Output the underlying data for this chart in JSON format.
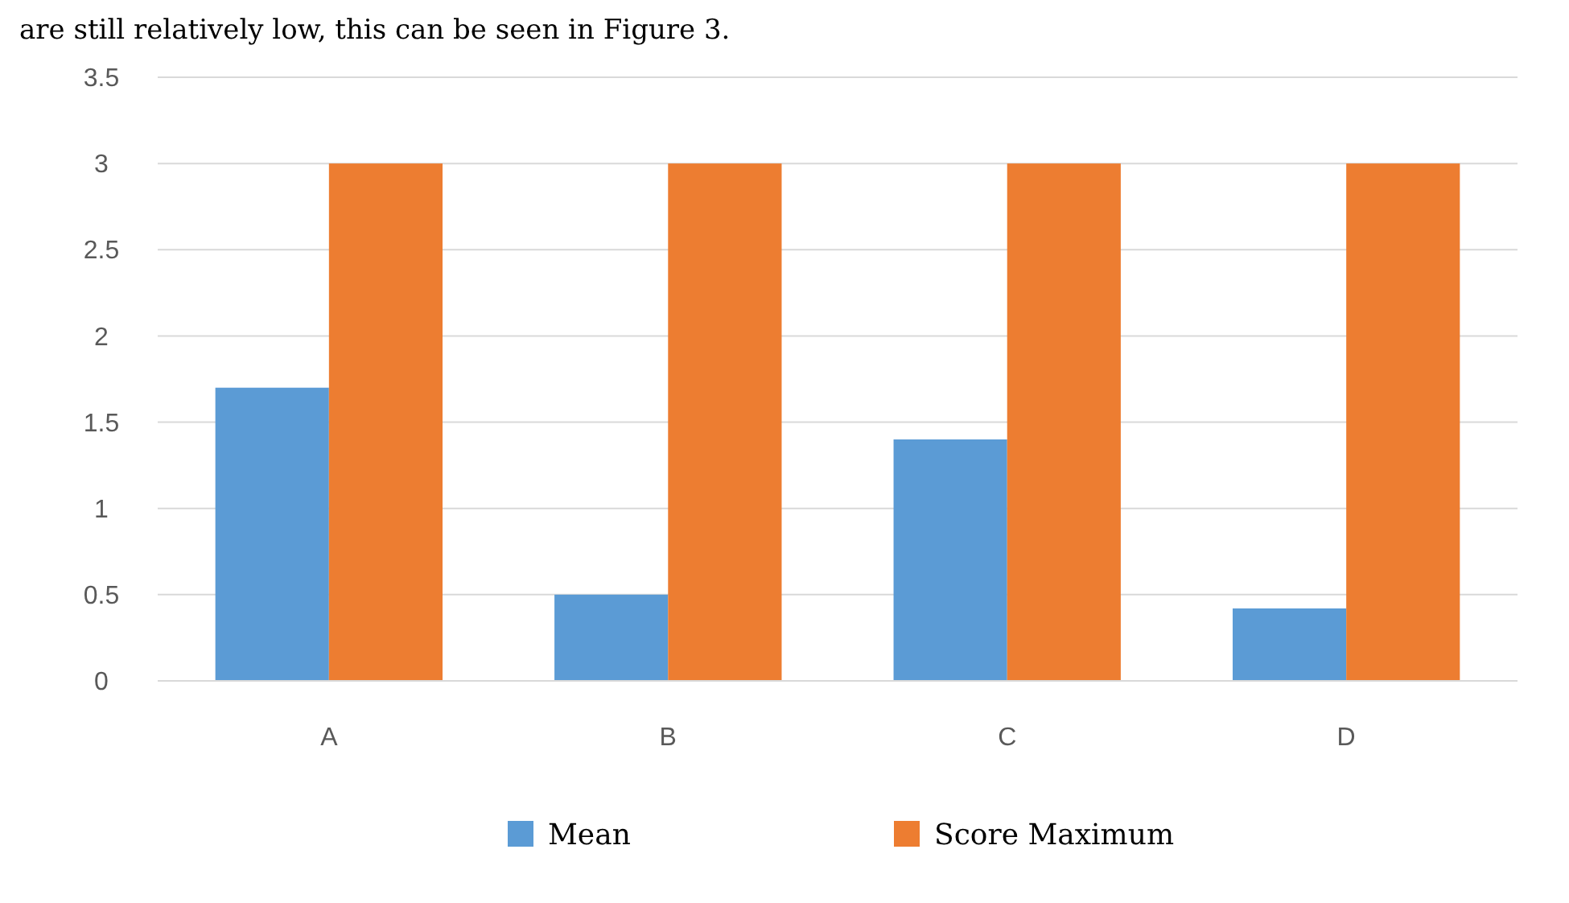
{
  "chart_data": {
    "type": "bar",
    "annotations": [
      "are still relatively low, this can be seen in Figure 3."
    ],
    "categories": [
      "A",
      "B",
      "C",
      "D"
    ],
    "series": [
      {
        "name": "Mean",
        "color": "#5b9bd5",
        "values": [
          1.7,
          0.5,
          1.4,
          0.42
        ]
      },
      {
        "name": "Score Maximum",
        "color": "#ed7d31",
        "values": [
          3,
          3,
          3,
          3
        ]
      }
    ],
    "ylim": [
      0,
      3.5
    ],
    "yticks": [
      0,
      0.5,
      1,
      1.5,
      2,
      2.5,
      3,
      3.5
    ],
    "grid": "y",
    "legend": "bottom"
  }
}
